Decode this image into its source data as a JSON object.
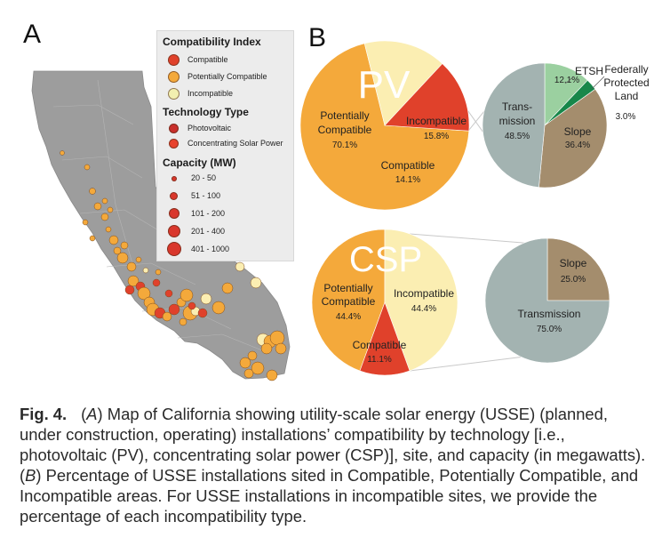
{
  "panels": {
    "a": "A",
    "b": "B"
  },
  "legend": {
    "compat_title": "Compatibility Index",
    "compat_items": [
      {
        "label": "Compatible",
        "color": "#e0412b"
      },
      {
        "label": "Potentially Compatible",
        "color": "#f4a93b"
      },
      {
        "label": "Incompatible",
        "color": "#f2efb0"
      }
    ],
    "tech_title": "Technology Type",
    "tech_items": [
      {
        "label": "Photovoltaic",
        "color": "#c9302c"
      },
      {
        "label": "Concentrating Solar Power",
        "color": "#e8432e"
      }
    ],
    "cap_title": "Capacity (MW)",
    "cap_items": [
      "20 - 50",
      "51 - 100",
      "101 - 200",
      "201 - 400",
      "401 - 1000"
    ]
  },
  "colors": {
    "compatible": "#e0412b",
    "potentially_compatible": "#f4a93b",
    "incompatible": "#fbeeb2",
    "transmission": "#a3b3b1",
    "slope": "#a48d6d",
    "etsh": "#9bd0a0",
    "federal": "#17874a",
    "land": "#9d9d9d"
  },
  "chart_data": [
    {
      "type": "pie",
      "title": "PV",
      "slices": [
        {
          "label": "Potentially Compatible",
          "value": 70.1,
          "value_label": "70.1%"
        },
        {
          "label": "Incompatible",
          "value": 15.8,
          "value_label": "15.8%"
        },
        {
          "label": "Compatible",
          "value": 14.1,
          "value_label": "14.1%"
        }
      ]
    },
    {
      "type": "pie",
      "title": "",
      "slices": [
        {
          "label": "ETSH",
          "value": 12.1,
          "value_label": "12.1%"
        },
        {
          "label": "Federally Protected Land",
          "value": 3.0,
          "value_label": "3.0%"
        },
        {
          "label": "Slope",
          "value": 36.4,
          "value_label": "36.4%"
        },
        {
          "label": "Trans-mission",
          "value": 48.5,
          "value_label": "48.5%"
        }
      ]
    },
    {
      "type": "pie",
      "title": "CSP",
      "slices": [
        {
          "label": "Potentially Compatible",
          "value": 44.4,
          "value_label": "44.4%"
        },
        {
          "label": "Incompatible",
          "value": 44.4,
          "value_label": "44.4%"
        },
        {
          "label": "Compatible",
          "value": 11.1,
          "value_label": "11.1%"
        }
      ]
    },
    {
      "type": "pie",
      "title": "",
      "slices": [
        {
          "label": "Slope",
          "value": 25.0,
          "value_label": "25.0%"
        },
        {
          "label": "Transmission",
          "value": 75.0,
          "value_label": "75.0%"
        }
      ]
    }
  ],
  "caption": {
    "fig": "Fig. 4.",
    "t1": "(",
    "a": "A",
    "t2": ") Map of California showing utility-scale solar energy (USSE) (planned, under construction, operating) installations’ compatibility by technology [i.e., photovoltaic (PV), concentrating solar power (CSP)], site, and capacity (in megawatts). (",
    "b": "B",
    "t3": ") Percentage of USSE installations sited in Compatible, Potentially Compatible, and Incompatible areas. For USSE installations in incompatible sites, we provide the percentage of each incompatibility type."
  }
}
